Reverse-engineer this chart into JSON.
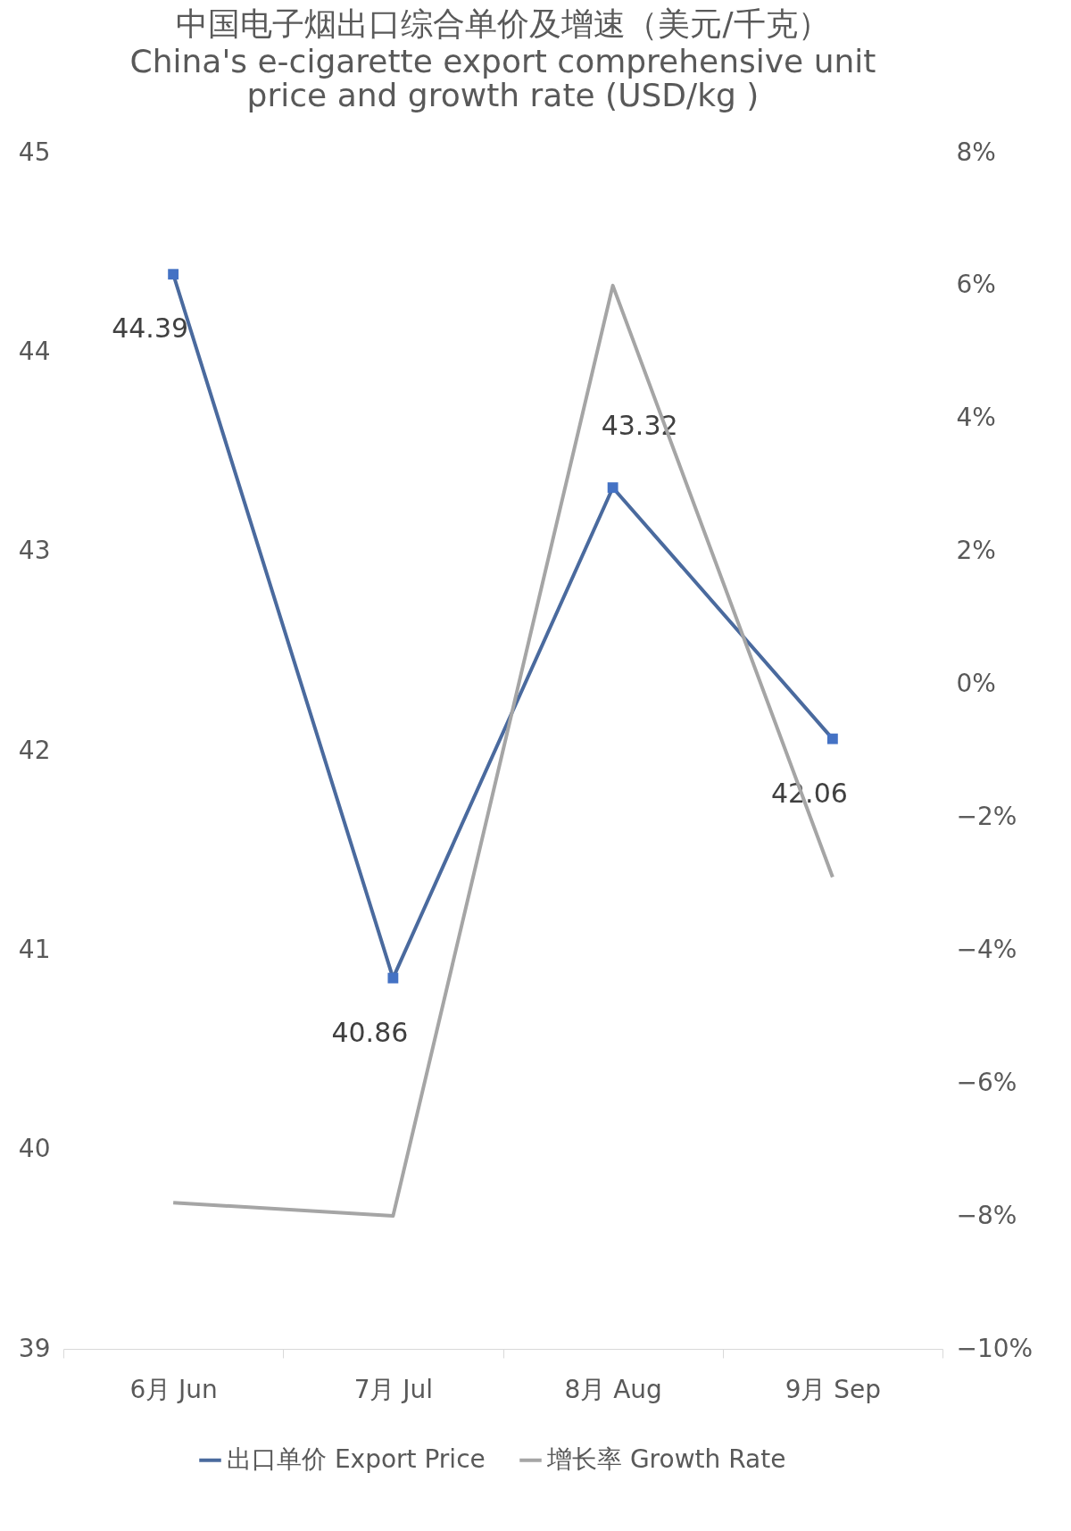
{
  "chart_data": {
    "type": "line",
    "title": "中国电子烟出口综合单价及增速（美元/千克）",
    "subtitle": "China's e-cigarette export comprehensive unit price and growth rate (USD/kg )",
    "categories": [
      "6月 Jun",
      "7月 Jul",
      "8月 Aug",
      "9月 Sep"
    ],
    "series": [
      {
        "name": "出口单价 Export Price",
        "color": "#4a6a9e",
        "marker": "square",
        "values": [
          44.39,
          40.86,
          43.32,
          42.06
        ],
        "value_labels": [
          "44.39",
          "40.86",
          "43.32",
          "42.06"
        ]
      },
      {
        "name": "增长率 Growth Rate",
        "color": "#a5a5a5",
        "marker": "none",
        "axis": "y2",
        "values": [
          -7.8,
          -8.0,
          6.0,
          -2.9
        ]
      }
    ],
    "ylim": [
      39,
      45
    ],
    "yticks": [
      39,
      40,
      41,
      42,
      43,
      44,
      45
    ],
    "y2lim": [
      -10,
      8
    ],
    "y2ticks": [
      {
        "value": -10,
        "label": "−10%"
      },
      {
        "value": -8,
        "label": "−8%"
      },
      {
        "value": -6,
        "label": "−6%"
      },
      {
        "value": -4,
        "label": "−4%"
      },
      {
        "value": -2,
        "label": "−2%"
      },
      {
        "value": 0,
        "label": "0%"
      },
      {
        "value": 2,
        "label": "2%"
      },
      {
        "value": 4,
        "label": "4%"
      },
      {
        "value": 6,
        "label": "6%"
      },
      {
        "value": 8,
        "label": "8%"
      }
    ],
    "legend": "bottom"
  }
}
